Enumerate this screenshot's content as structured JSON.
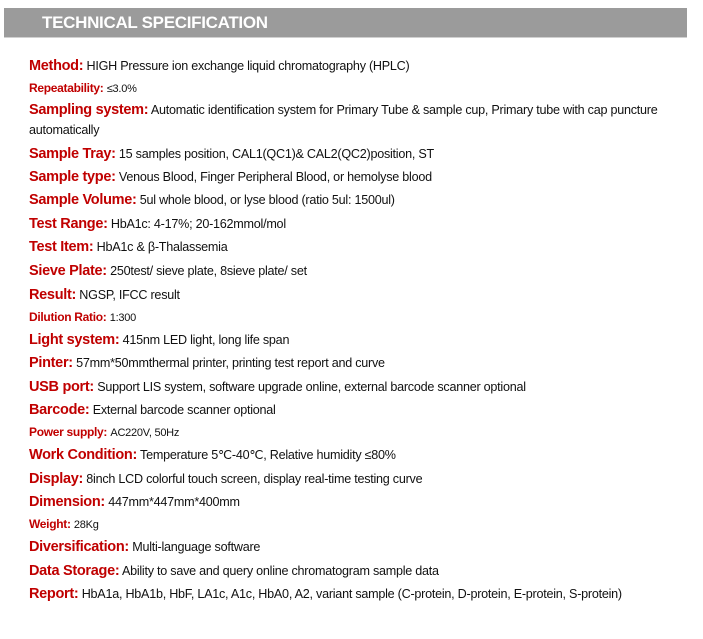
{
  "title": "TECHNICAL SPECIFICATION",
  "colors": {
    "label": "#c00000",
    "header_bg": "#9b9b9b"
  },
  "specs": [
    {
      "label": "Method:",
      "value": "HIGH Pressure ion exchange liquid chromatography (HPLC)"
    },
    {
      "label": "Repeatability:",
      "value": "≤3.0%"
    },
    {
      "label": "Sampling system:",
      "value": "Automatic identification system for Primary Tube & sample cup, Primary tube with cap puncture automatically"
    },
    {
      "label": "Sample Tray:",
      "value": " 15 samples position, CAL1(QC1)& CAL2(QC2)position, ST"
    },
    {
      "label": "Sample type:",
      "value": "Venous Blood, Finger Peripheral Blood, or hemolyse blood"
    },
    {
      "label": "Sample Volume:",
      "value": "5ul whole blood, or lyse blood (ratio 5ul: 1500ul)"
    },
    {
      "label": "Test Range:",
      "value": "HbA1c: 4-17%; 20-162mmol/mol"
    },
    {
      "label": "Test Item:",
      "value": "HbA1c & β-Thalassemia"
    },
    {
      "label": "Sieve Plate:",
      "value": "250test/ sieve plate, 8sieve plate/ set"
    },
    {
      "label": "Result:",
      "value": "NGSP, IFCC result"
    },
    {
      "label": "Dilution Ratio:",
      "value": "1:300"
    },
    {
      "label": "Light system:",
      "value": "415nm LED light, long life span"
    },
    {
      "label": "Pinter:",
      "value": "57mm*50mmthermal printer, printing test report and curve"
    },
    {
      "label": "USB port:",
      "value": "Support LIS system, software upgrade online, external barcode scanner optional"
    },
    {
      "label": "Barcode:",
      "value": "External barcode scanner optional"
    },
    {
      "label": "Power supply:",
      "value": "AC220V, 50Hz"
    },
    {
      "label": "Work Condition:",
      "value": "Temperature 5℃-40℃, Relative humidity ≤80%"
    },
    {
      "label": "Display:",
      "value": "8inch LCD colorful touch screen, display real-time testing curve"
    },
    {
      "label": "Dimension:",
      "value": "447mm*447mm*400mm"
    },
    {
      "label": "Weight:",
      "value": "28Kg"
    },
    {
      "label": "Diversification:",
      "value": "Multi-language software"
    },
    {
      "label": "Data Storage:",
      "value": "Ability to save and query online chromatogram sample data"
    },
    {
      "label": "Report:",
      "value": "HbA1a, HbA1b, HbF, LA1c, A1c, HbA0, A2, variant sample (C-protein, D-protein, E-protein, S-protein)"
    }
  ]
}
